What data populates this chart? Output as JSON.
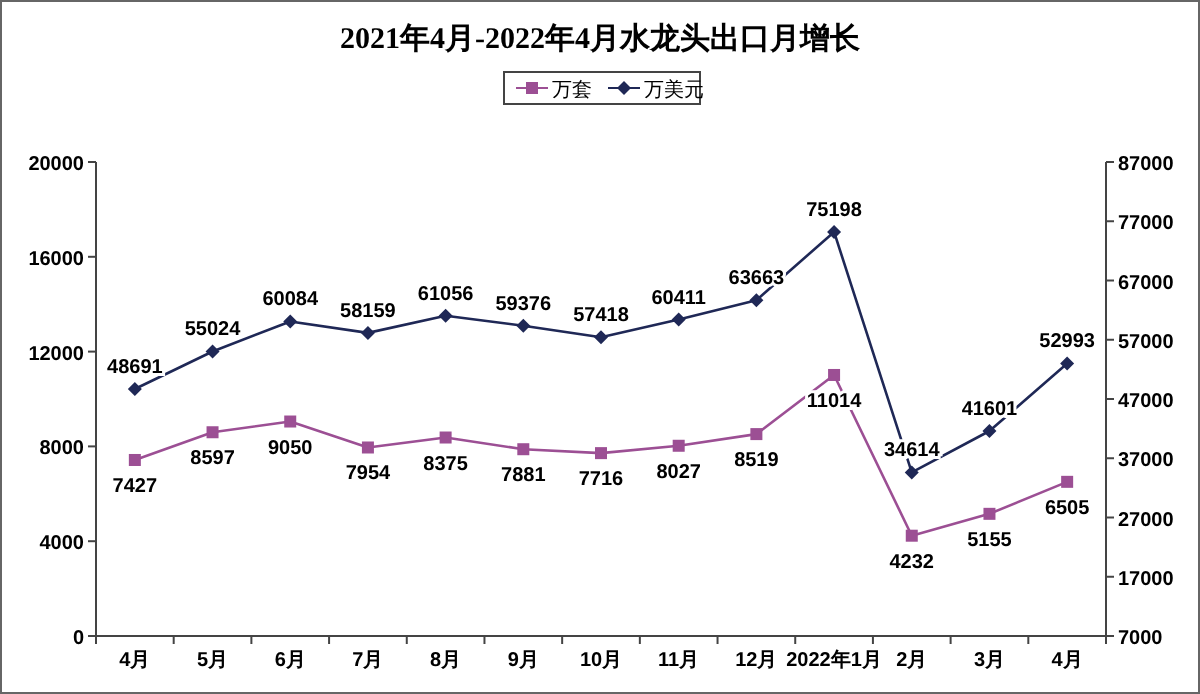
{
  "chart_data": {
    "type": "line",
    "title": "2021年4月-2022年4月水龙头出口月增长",
    "categories": [
      "4月",
      "5月",
      "6月",
      "7月",
      "8月",
      "9月",
      "10月",
      "11月",
      "12月",
      "2022年1月",
      "2月",
      "3月",
      "4月"
    ],
    "series": [
      {
        "name": "万套",
        "color": "#9c4f94",
        "marker": "square",
        "values": [
          7427,
          8597,
          9050,
          7954,
          8375,
          7881,
          7716,
          8027,
          8519,
          11014,
          4232,
          5155,
          6505
        ]
      },
      {
        "name": "万美元",
        "color": "#1f2856",
        "marker": "diamond",
        "axis": "y2",
        "values": [
          48691,
          55024,
          60084,
          58159,
          61056,
          59376,
          57418,
          60411,
          63663,
          75198,
          34614,
          41601,
          52993
        ]
      }
    ],
    "ylim": [
      0,
      20000
    ],
    "yticks": [
      0,
      4000,
      8000,
      12000,
      16000,
      20000
    ],
    "y2lim": [
      7000,
      87000
    ],
    "y2ticks": [
      7000,
      17000,
      27000,
      37000,
      47000,
      57000,
      67000,
      77000,
      87000
    ],
    "data_labels": true,
    "legend": "top",
    "grid": false,
    "line_style": "solid"
  }
}
